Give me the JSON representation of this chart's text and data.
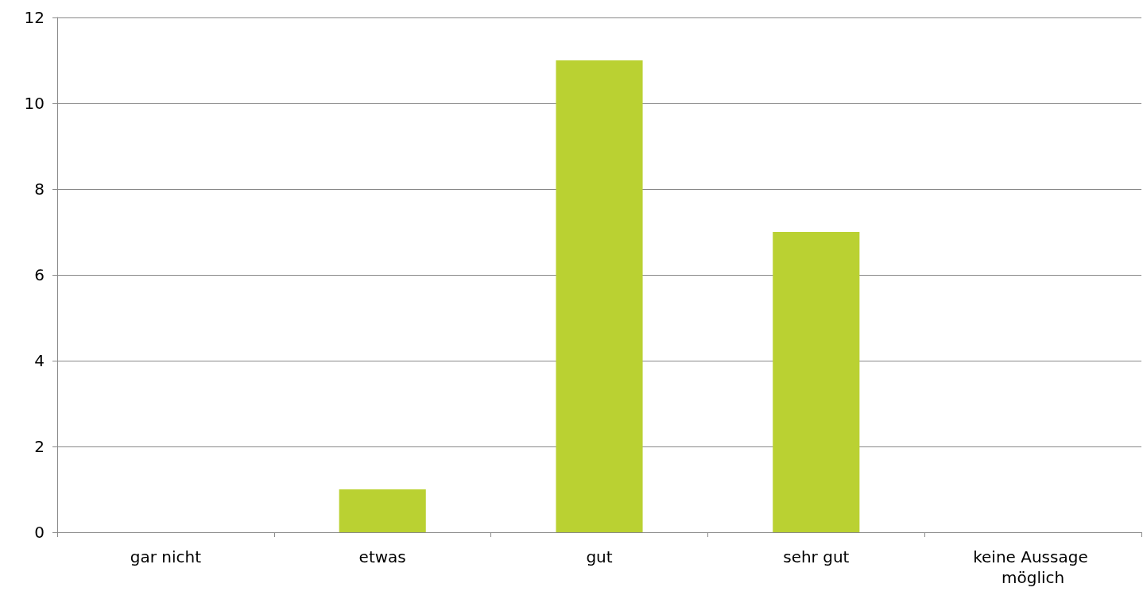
{
  "chart_data": {
    "type": "bar",
    "categories": [
      "gar nicht",
      "etwas",
      "gut",
      "sehr gut",
      "keine Aussage möglich"
    ],
    "values": [
      0,
      1,
      11,
      7,
      0
    ],
    "color": "#bad132",
    "ylim": [
      0,
      12
    ],
    "yticks": [
      0,
      2,
      4,
      6,
      8,
      10,
      12
    ],
    "grid": "y"
  }
}
